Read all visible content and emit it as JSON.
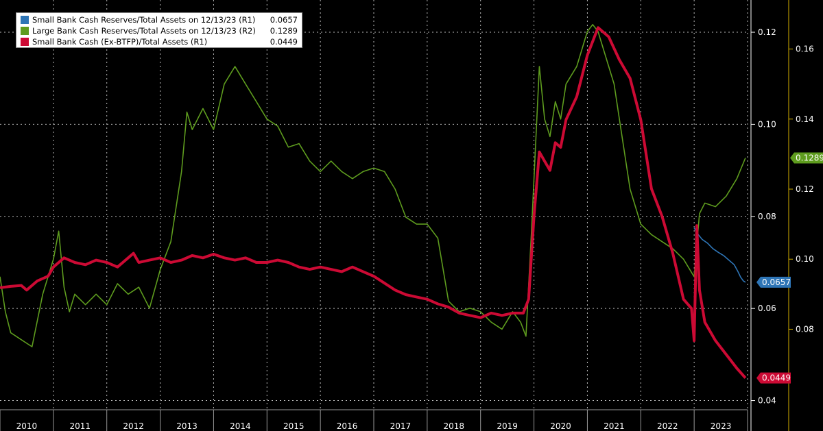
{
  "legend": {
    "entries": [
      {
        "label": "Small Bank Cash Reserves/Total Assets on 12/13/23 (R1)",
        "value": "0.0657",
        "color": "#2e75b6"
      },
      {
        "label": "Large Bank Cash Reserves/Total Assets on 12/13/23 (R2)",
        "value": "0.1289",
        "color": "#5e9c1e"
      },
      {
        "label": "Small Bank Cash (Ex-BTFP)/Total Assets (R1)",
        "value": "0.0449",
        "color": "#cc0a34"
      }
    ]
  },
  "chart_data": {
    "type": "line",
    "x_type": "year",
    "x_ticks": [
      "2010",
      "2011",
      "2012",
      "2013",
      "2014",
      "2015",
      "2016",
      "2017",
      "2018",
      "2019",
      "2020",
      "2021",
      "2022",
      "2023"
    ],
    "xlim": [
      2010.0,
      2024.0
    ],
    "axes": {
      "R1": {
        "ylim": [
          0.038,
          0.127
        ],
        "ticks": [
          0.04,
          0.06,
          0.08,
          0.1,
          0.12
        ]
      },
      "R2": {
        "ylim": [
          0.057,
          0.174
        ],
        "ticks": [
          0.08,
          0.1,
          0.12,
          0.14,
          0.16
        ]
      }
    },
    "grid": true,
    "series": [
      {
        "name": "Small Bank Cash Reserves/Total Assets on 12/13/23 (R1)",
        "axis": "R1",
        "color": "#2e75b6",
        "last_value": "0.0657",
        "x": [
          2023.0,
          2023.08,
          2023.15,
          2023.25,
          2023.35,
          2023.45,
          2023.55,
          2023.65,
          2023.75,
          2023.82,
          2023.87,
          2023.92,
          2023.96
        ],
        "y": [
          0.0775,
          0.076,
          0.075,
          0.0742,
          0.073,
          0.0722,
          0.0715,
          0.0705,
          0.0695,
          0.068,
          0.0668,
          0.066,
          0.0657
        ]
      },
      {
        "name": "Large Bank Cash Reserves/Total Assets on 12/13/23 (R2)",
        "axis": "R2",
        "color": "#5e9c1e",
        "last_value": "0.1289",
        "x": [
          2010.0,
          2010.1,
          2010.2,
          2010.4,
          2010.6,
          2010.8,
          2011.0,
          2011.1,
          2011.2,
          2011.3,
          2011.4,
          2011.6,
          2011.8,
          2012.0,
          2012.2,
          2012.4,
          2012.6,
          2012.8,
          2013.0,
          2013.2,
          2013.4,
          2013.5,
          2013.6,
          2013.7,
          2013.8,
          2014.0,
          2014.2,
          2014.4,
          2014.6,
          2014.8,
          2015.0,
          2015.2,
          2015.4,
          2015.6,
          2015.8,
          2016.0,
          2016.2,
          2016.4,
          2016.6,
          2016.8,
          2017.0,
          2017.2,
          2017.4,
          2017.6,
          2017.8,
          2018.0,
          2018.2,
          2018.4,
          2018.6,
          2018.8,
          2019.0,
          2019.2,
          2019.4,
          2019.6,
          2019.75,
          2019.85,
          2019.95,
          2020.1,
          2020.2,
          2020.3,
          2020.4,
          2020.5,
          2020.6,
          2020.8,
          2021.0,
          2021.1,
          2021.2,
          2021.3,
          2021.4,
          2021.5,
          2021.6,
          2021.7,
          2021.8,
          2022.0,
          2022.2,
          2022.4,
          2022.6,
          2022.8,
          2023.0,
          2023.1,
          2023.2,
          2023.4,
          2023.6,
          2023.8,
          2023.96
        ],
        "y": [
          0.095,
          0.085,
          0.079,
          0.077,
          0.075,
          0.09,
          0.1,
          0.108,
          0.092,
          0.085,
          0.09,
          0.087,
          0.09,
          0.087,
          0.093,
          0.09,
          0.092,
          0.086,
          0.097,
          0.105,
          0.125,
          0.142,
          0.137,
          0.14,
          0.143,
          0.137,
          0.15,
          0.155,
          0.15,
          0.145,
          0.14,
          0.138,
          0.132,
          0.133,
          0.128,
          0.125,
          0.128,
          0.125,
          0.123,
          0.125,
          0.126,
          0.125,
          0.12,
          0.112,
          0.11,
          0.11,
          0.106,
          0.088,
          0.085,
          0.086,
          0.085,
          0.082,
          0.08,
          0.085,
          0.082,
          0.078,
          0.107,
          0.155,
          0.14,
          0.135,
          0.145,
          0.14,
          0.15,
          0.155,
          0.165,
          0.167,
          0.165,
          0.16,
          0.155,
          0.15,
          0.14,
          0.13,
          0.12,
          0.11,
          0.107,
          0.105,
          0.103,
          0.1,
          0.095,
          0.113,
          0.116,
          0.115,
          0.118,
          0.123,
          0.1289
        ]
      },
      {
        "name": "Small Bank Cash (Ex-BTFP)/Total Assets (R1)",
        "axis": "R1",
        "color": "#cc0a34",
        "last_value": "0.0449",
        "x": [
          2010.0,
          2010.2,
          2010.4,
          2010.5,
          2010.7,
          2010.9,
          2011.0,
          2011.2,
          2011.4,
          2011.6,
          2011.8,
          2012.0,
          2012.2,
          2012.4,
          2012.5,
          2012.6,
          2012.8,
          2013.0,
          2013.2,
          2013.4,
          2013.6,
          2013.8,
          2014.0,
          2014.2,
          2014.4,
          2014.6,
          2014.8,
          2015.0,
          2015.2,
          2015.4,
          2015.6,
          2015.8,
          2016.0,
          2016.2,
          2016.4,
          2016.6,
          2016.8,
          2017.0,
          2017.2,
          2017.4,
          2017.6,
          2017.8,
          2018.0,
          2018.2,
          2018.4,
          2018.6,
          2018.8,
          2019.0,
          2019.2,
          2019.4,
          2019.6,
          2019.8,
          2019.9,
          2020.0,
          2020.1,
          2020.2,
          2020.3,
          2020.4,
          2020.5,
          2020.6,
          2020.8,
          2021.0,
          2021.2,
          2021.4,
          2021.6,
          2021.8,
          2022.0,
          2022.2,
          2022.4,
          2022.6,
          2022.8,
          2022.95,
          2023.0,
          2023.05,
          2023.1,
          2023.2,
          2023.4,
          2023.6,
          2023.8,
          2023.96
        ],
        "y": [
          0.0645,
          0.0648,
          0.065,
          0.064,
          0.066,
          0.067,
          0.069,
          0.071,
          0.07,
          0.0695,
          0.0705,
          0.07,
          0.069,
          0.071,
          0.072,
          0.07,
          0.0705,
          0.071,
          0.07,
          0.0705,
          0.0715,
          0.071,
          0.0718,
          0.071,
          0.0705,
          0.071,
          0.07,
          0.07,
          0.0705,
          0.07,
          0.069,
          0.0685,
          0.069,
          0.0685,
          0.068,
          0.069,
          0.068,
          0.067,
          0.0655,
          0.064,
          0.063,
          0.0625,
          0.062,
          0.061,
          0.0603,
          0.059,
          0.0585,
          0.058,
          0.059,
          0.0585,
          0.059,
          0.059,
          0.062,
          0.08,
          0.094,
          0.092,
          0.09,
          0.096,
          0.095,
          0.101,
          0.106,
          0.115,
          0.121,
          0.119,
          0.114,
          0.11,
          0.101,
          0.086,
          0.08,
          0.072,
          0.062,
          0.06,
          0.053,
          0.078,
          0.064,
          0.057,
          0.053,
          0.05,
          0.047,
          0.0449
        ]
      }
    ],
    "end_labels": [
      {
        "text": "0.1289",
        "series": 1
      },
      {
        "text": "0.0657",
        "series": 0
      },
      {
        "text": "0.0449",
        "series": 2
      }
    ]
  }
}
